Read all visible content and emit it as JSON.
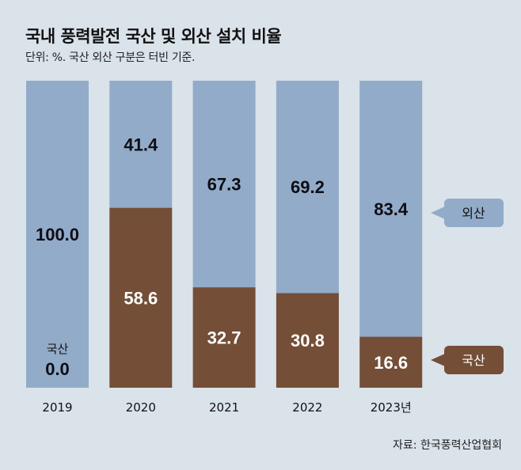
{
  "chart_data": {
    "type": "bar",
    "stacked": true,
    "title": "국내 풍력발전 국산 및 외산 설치 비율",
    "subtitle": "단위: %. 국산 외산 구분은 터빈 기준.",
    "categories": [
      "2019",
      "2020",
      "2021",
      "2022",
      "2023년"
    ],
    "series": [
      {
        "name": "국산",
        "color": "#744e37",
        "values": [
          0.0,
          58.6,
          32.7,
          30.8,
          16.6
        ],
        "labels": [
          "0.0",
          "58.6",
          "32.7",
          "30.8",
          "16.6"
        ]
      },
      {
        "name": "외산",
        "color": "#92abc9",
        "values": [
          100.0,
          41.4,
          67.3,
          69.2,
          83.4
        ],
        "labels": [
          "100.0",
          "41.4",
          "67.3",
          "69.2",
          "83.4"
        ]
      }
    ],
    "zero_label": "국산",
    "ylim": [
      0,
      100
    ],
    "legend": [
      {
        "label": "외산",
        "color": "#92abc9"
      },
      {
        "label": "국산",
        "color": "#744e37"
      }
    ],
    "source": "자료: 한국풍력산업협회"
  }
}
